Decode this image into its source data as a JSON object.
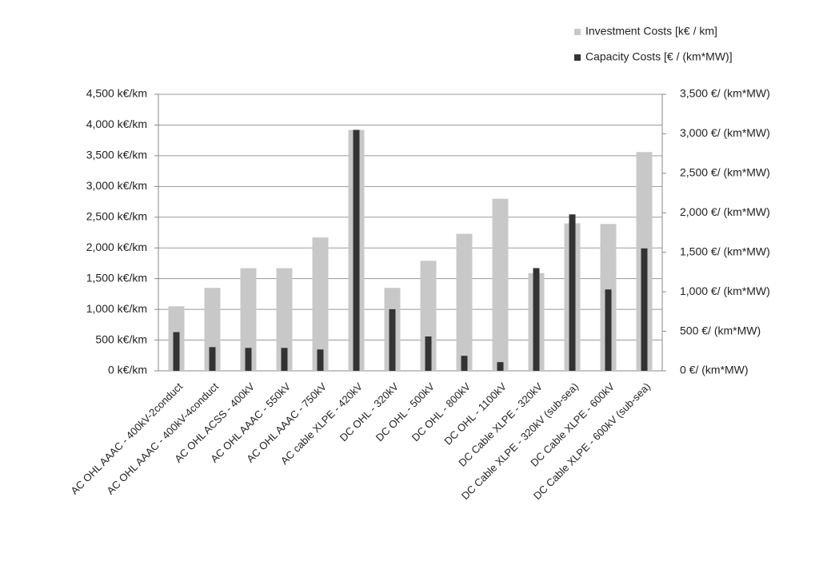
{
  "chart_data": {
    "type": "bar",
    "categories": [
      "AC OHL AAAC - 400kV-2conduct",
      "AC OHL AAAC - 400kV-4conduct",
      "AC OHL ACSS - 400kV",
      "AC OHL AAAC - 550kV",
      "AC OHL AAAC - 750kV",
      "AC cable XLPE - 420kV",
      "DC OHL - 320kV",
      "DC OHL - 500kV",
      "DC OHL - 800kV",
      "DC OHL - 1100kV",
      "DC Cable XLPE - 320kV",
      "DC Cable XLPE - 320kV (sub-sea)",
      "DC Cable XLPE - 600kV",
      "DC Cable XLPE - 600kV (sub-sea)"
    ],
    "series": [
      {
        "name": "Investment Costs [k€ / km]",
        "color": "#c8c8c8",
        "values": [
          1050,
          1350,
          1670,
          1670,
          2170,
          3920,
          1350,
          1790,
          2230,
          2800,
          1590,
          2400,
          2390,
          3560
        ]
      },
      {
        "name": "Capacity Costs [€ / (km*MW)]",
        "color": "#333333",
        "axis": "y2",
        "values": [
          490,
          300,
          290,
          290,
          270,
          3050,
          780,
          435,
          190,
          110,
          1300,
          1980,
          1030,
          1550
        ]
      }
    ],
    "ylim": [
      0,
      4500
    ],
    "yticks": [
      {
        "value": 0,
        "label": "0 k€/km"
      },
      {
        "value": 500,
        "label": "500 k€/km"
      },
      {
        "value": 1000,
        "label": "1,000 k€/km"
      },
      {
        "value": 1500,
        "label": "1,500 k€/km"
      },
      {
        "value": 2000,
        "label": "2,000 k€/km"
      },
      {
        "value": 2500,
        "label": "2,500 k€/km"
      },
      {
        "value": 3000,
        "label": "3,000 k€/km"
      },
      {
        "value": 3500,
        "label": "3,500 k€/km"
      },
      {
        "value": 4000,
        "label": "4,000 k€/km"
      },
      {
        "value": 4500,
        "label": "4,500 k€/km"
      }
    ],
    "y2lim": [
      0,
      3500
    ],
    "y2ticks": [
      {
        "value": 0,
        "label": "0 €/ (km*MW)"
      },
      {
        "value": 500,
        "label": "500 €/ (km*MW)"
      },
      {
        "value": 1000,
        "label": "1,000 €/ (km*MW)"
      },
      {
        "value": 1500,
        "label": "1,500 €/ (km*MW)"
      },
      {
        "value": 2000,
        "label": "2,000 €/ (km*MW)"
      },
      {
        "value": 2500,
        "label": "2,500 €/ (km*MW)"
      },
      {
        "value": 3000,
        "label": "3,000 €/ (km*MW)"
      },
      {
        "value": 3500,
        "label": "3,500 €/ (km*MW)"
      }
    ],
    "grid": true,
    "legend": "top-right"
  }
}
